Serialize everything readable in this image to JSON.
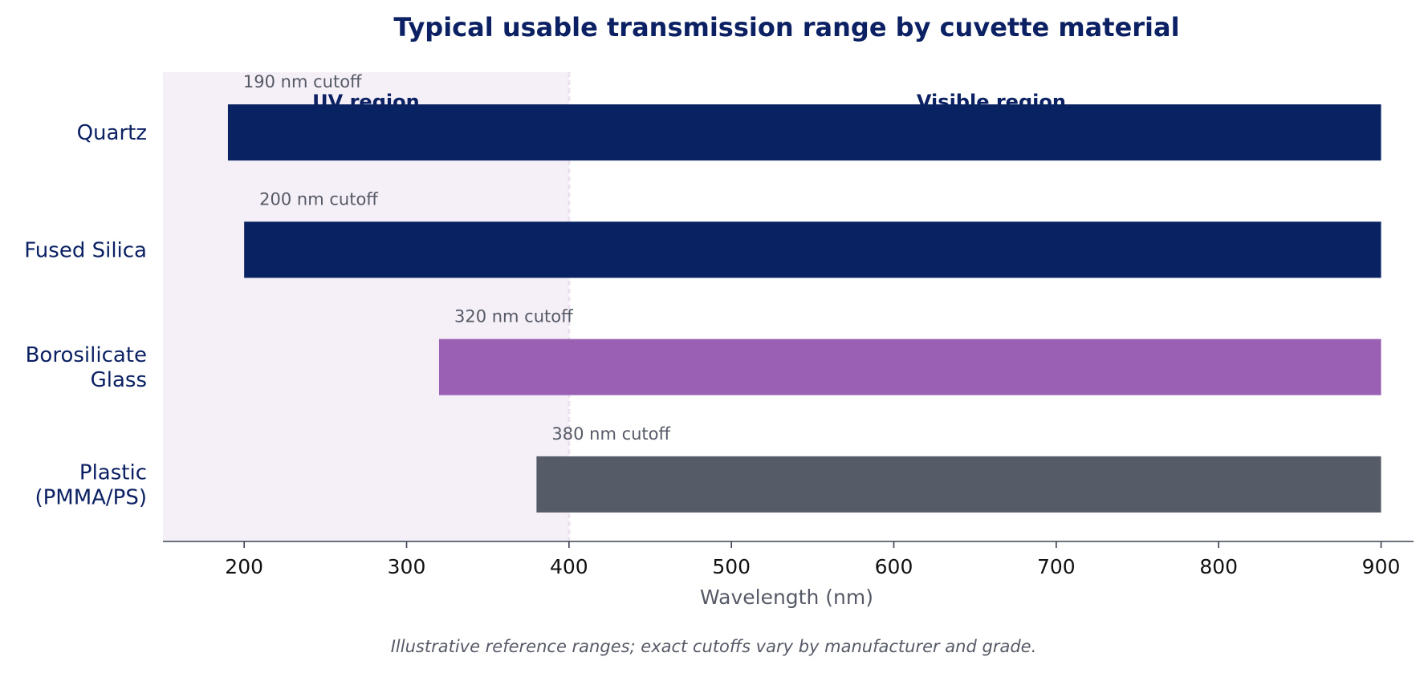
{
  "colors": {
    "title": "#0b2163",
    "uv_shade": "#f5eff7",
    "uv_divider": "#ece2ef",
    "axis_line": "#3c4253",
    "muted_text": "#555a66",
    "tick_text": "#111111"
  },
  "chart_data": {
    "type": "bar",
    "orientation": "horizontal",
    "title": "Typical usable transmission range by cuvette material",
    "xlabel": "Wavelength (nm)",
    "ylabel": "",
    "xlim": [
      150,
      920
    ],
    "xticks": [
      200,
      300,
      400,
      500,
      600,
      700,
      800,
      900
    ],
    "grid": false,
    "regions": [
      {
        "label": "UV region",
        "start": 150,
        "end": 400,
        "shaded": true
      },
      {
        "label": "Visible region",
        "start": 400,
        "end": 920,
        "shaded": false
      }
    ],
    "categories": [
      "Quartz",
      "Fused Silica",
      "Borosilicate\nGlass",
      "Plastic\n(PMMA/PS)"
    ],
    "bars": [
      {
        "category": "Quartz",
        "start": 190,
        "end": 900,
        "annotation": "190 nm cutoff",
        "color": "#082262"
      },
      {
        "category": "Fused Silica",
        "start": 200,
        "end": 900,
        "annotation": "200 nm cutoff",
        "color": "#082262"
      },
      {
        "category": "Borosilicate\nGlass",
        "start": 320,
        "end": 900,
        "annotation": "320 nm cutoff",
        "color": "#9a60b4"
      },
      {
        "category": "Plastic\n(PMMA/PS)",
        "start": 380,
        "end": 900,
        "annotation": "380 nm cutoff",
        "color": "#565c67"
      }
    ],
    "footnote": "Illustrative reference ranges; exact cutoffs vary by manufacturer and grade."
  }
}
